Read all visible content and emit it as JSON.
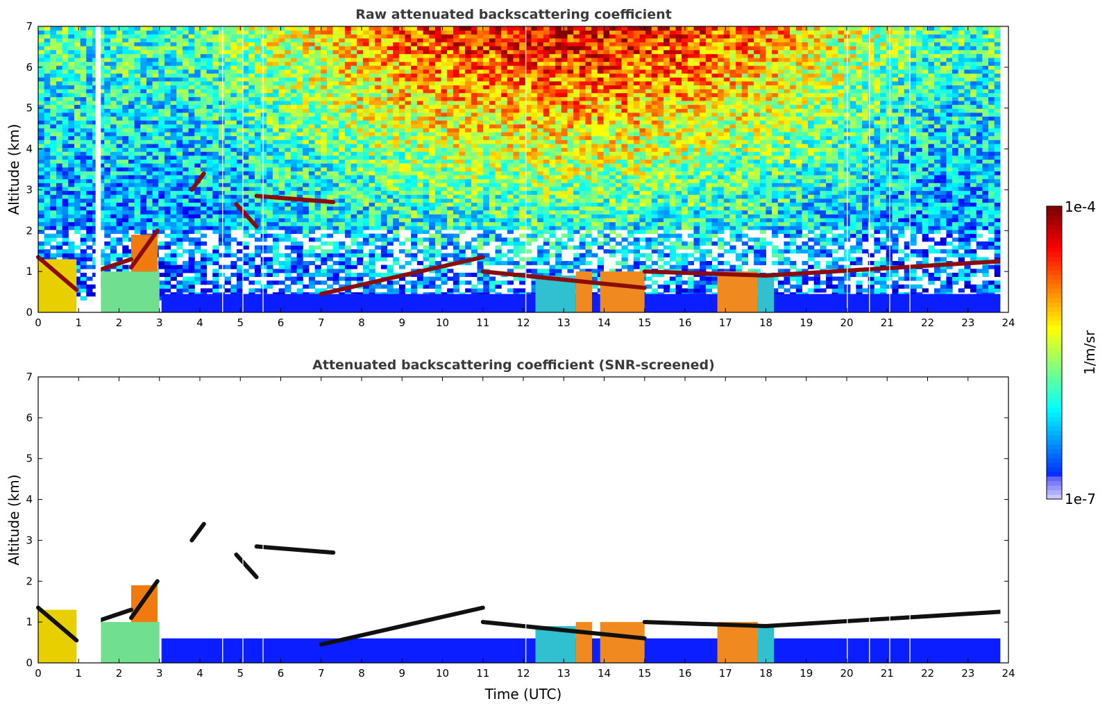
{
  "chart_data": [
    {
      "type": "heatmap",
      "title": "Raw attenuated backscattering coefficient",
      "xlabel": "",
      "ylabel": "Altitude (km)",
      "xlim": [
        0,
        24
      ],
      "ylim": [
        0,
        7
      ],
      "xticks": [
        "0",
        "1",
        "2",
        "3",
        "4",
        "5",
        "6",
        "7",
        "8",
        "9",
        "10",
        "11",
        "12",
        "13",
        "14",
        "15",
        "16",
        "17",
        "18",
        "19",
        "20",
        "21",
        "22",
        "23",
        "24"
      ],
      "yticks": [
        "0",
        "1",
        "2",
        "3",
        "4",
        "5",
        "6",
        "7"
      ],
      "data_end_time": 23.8,
      "screened": false,
      "cloud_layers": [
        {
          "time": [
            0,
            0.95
          ],
          "altitude": [
            1.35,
            0.55
          ]
        },
        {
          "time": [
            1.55,
            2.3
          ],
          "altitude": [
            1.05,
            1.3
          ]
        },
        {
          "time": [
            2.3,
            2.95
          ],
          "altitude": [
            1.1,
            2.0
          ]
        },
        {
          "time": [
            3.8,
            4.1
          ],
          "altitude": [
            3.0,
            3.4
          ]
        },
        {
          "time": [
            4.9,
            5.4
          ],
          "altitude": [
            2.65,
            2.1
          ]
        },
        {
          "time": [
            5.4,
            7.3
          ],
          "altitude": [
            2.85,
            2.7
          ]
        },
        {
          "time": [
            7.0,
            11.0
          ],
          "altitude": [
            0.45,
            1.35
          ]
        },
        {
          "time": [
            11.0,
            15.0
          ],
          "altitude": [
            1.0,
            0.6
          ]
        },
        {
          "time": [
            15.0,
            18.0
          ],
          "altitude": [
            1.0,
            0.9
          ]
        },
        {
          "time": [
            18.0,
            23.8
          ],
          "altitude": [
            0.9,
            1.25
          ]
        }
      ]
    },
    {
      "type": "heatmap",
      "title": "Attenuated backscattering coefficient (SNR-screened)",
      "xlabel": "Time (UTC)",
      "ylabel": "Altitude (km)",
      "xlim": [
        0,
        24
      ],
      "ylim": [
        0,
        7
      ],
      "xticks": [
        "0",
        "1",
        "2",
        "3",
        "4",
        "5",
        "6",
        "7",
        "8",
        "9",
        "10",
        "11",
        "12",
        "13",
        "14",
        "15",
        "16",
        "17",
        "18",
        "19",
        "20",
        "21",
        "22",
        "23",
        "24"
      ],
      "yticks": [
        "0",
        "1",
        "2",
        "3",
        "4",
        "5",
        "6",
        "7"
      ],
      "data_end_time": 23.8,
      "screened": true
    }
  ],
  "colorbar": {
    "label": "1/m/sr",
    "max_label": "1e-4",
    "min_label": "1e-7",
    "colormap": "jet"
  }
}
